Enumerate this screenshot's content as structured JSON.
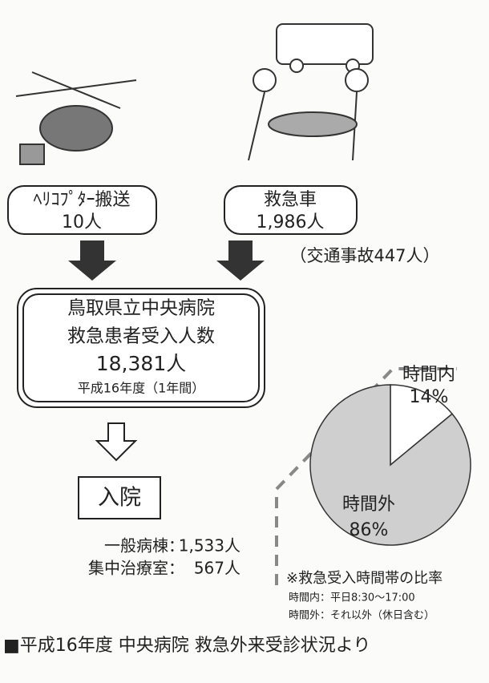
{
  "helicopter": {
    "label": "ﾍﾘｺﾌﾟﾀｰ搬送",
    "count": "10人"
  },
  "ambulance": {
    "label": "救急車",
    "count": "1,986人",
    "note": "（交通事故447人）"
  },
  "hospital": {
    "name": "鳥取県立中央病院",
    "label": "救急患者受入人数",
    "count": "18,381人",
    "period": "平成16年度（1年間）"
  },
  "admission": {
    "title": "入院",
    "rows": [
      [
        "一般病棟：",
        "1,533人"
      ],
      [
        "集中治療室：",
        "567人"
      ]
    ]
  },
  "pie": {
    "slices": [
      {
        "label": "時間内",
        "value": 14,
        "value_label": "14%",
        "color": "#ffffff"
      },
      {
        "label": "時間外",
        "value": 86,
        "value_label": "86%",
        "color": "#cfcfcf"
      }
    ]
  },
  "note": {
    "title": "※救急受入時間帯の比率",
    "lines": [
      "時間内：平日8:30～17:00",
      "時間外：それ以外（休日含む）"
    ]
  },
  "footer": "■平成16年度 中央病院 救急外来受診状況より"
}
